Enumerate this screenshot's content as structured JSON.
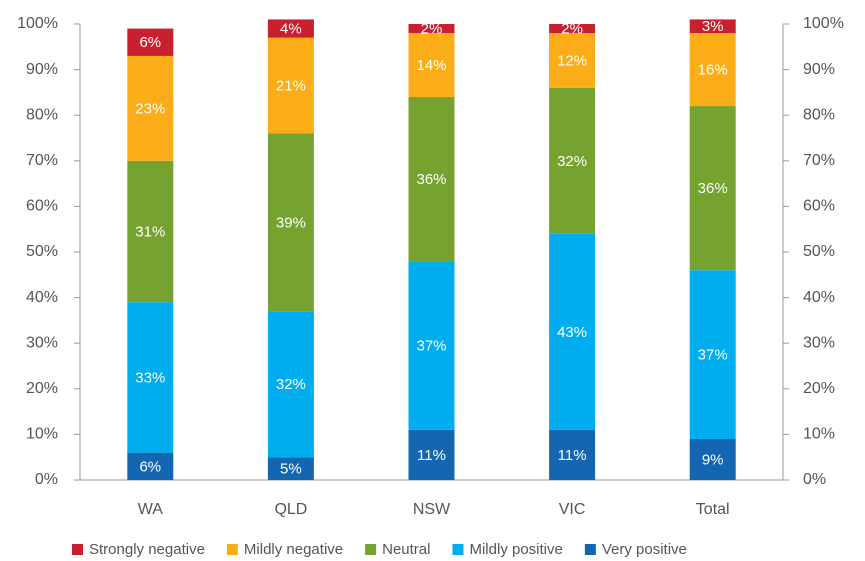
{
  "chart_data": {
    "type": "stacked_bar",
    "categories": [
      "WA",
      "QLD",
      "NSW",
      "VIC",
      "Total"
    ],
    "series": [
      {
        "name": "Very positive",
        "color": "#1566b1",
        "values": [
          6,
          5,
          11,
          11,
          9
        ],
        "value_labels": [
          "6%",
          "5%",
          "11%",
          "11%",
          "9%"
        ]
      },
      {
        "name": "Mildly positive",
        "color": "#00aeef",
        "values": [
          33,
          32,
          37,
          43,
          37
        ],
        "value_labels": [
          "33%",
          "32%",
          "37%",
          "43%",
          "37%"
        ]
      },
      {
        "name": "Neutral",
        "color": "#76a22f",
        "values": [
          31,
          39,
          36,
          32,
          36
        ],
        "value_labels": [
          "31%",
          "39%",
          "36%",
          "32%",
          "36%"
        ]
      },
      {
        "name": "Mildly negative",
        "color": "#fbad18",
        "values": [
          23,
          21,
          14,
          12,
          16
        ],
        "value_labels": [
          "23%",
          "21%",
          "14%",
          "12%",
          "16%"
        ]
      },
      {
        "name": "Strongly negative",
        "color": "#c8202f",
        "values": [
          6,
          4,
          2,
          2,
          3
        ],
        "value_labels": [
          "6%",
          "4%",
          "2%",
          "2%",
          "3%"
        ]
      }
    ],
    "ylim": [
      0,
      100
    ],
    "yticks": [
      {
        "value": 0,
        "label": "0%"
      },
      {
        "value": 10,
        "label": "10%"
      },
      {
        "value": 20,
        "label": "20%"
      },
      {
        "value": 30,
        "label": "30%"
      },
      {
        "value": 40,
        "label": "40%"
      },
      {
        "value": 50,
        "label": "50%"
      },
      {
        "value": 60,
        "label": "60%"
      },
      {
        "value": 70,
        "label": "70%"
      },
      {
        "value": 80,
        "label": "80%"
      },
      {
        "value": 90,
        "label": "90%"
      },
      {
        "value": 100,
        "label": "100%"
      }
    ],
    "y2lim": [
      0,
      100
    ],
    "y2ticks": [
      {
        "value": 0,
        "label": "0%"
      },
      {
        "value": 10,
        "label": "10%"
      },
      {
        "value": 20,
        "label": "20%"
      },
      {
        "value": 30,
        "label": "30%"
      },
      {
        "value": 40,
        "label": "40%"
      },
      {
        "value": 50,
        "label": "50%"
      },
      {
        "value": 60,
        "label": "60%"
      },
      {
        "value": 70,
        "label": "70%"
      },
      {
        "value": 80,
        "label": "80%"
      },
      {
        "value": 90,
        "label": "90%"
      },
      {
        "value": 100,
        "label": "100%"
      }
    ],
    "legend": "bottom"
  }
}
